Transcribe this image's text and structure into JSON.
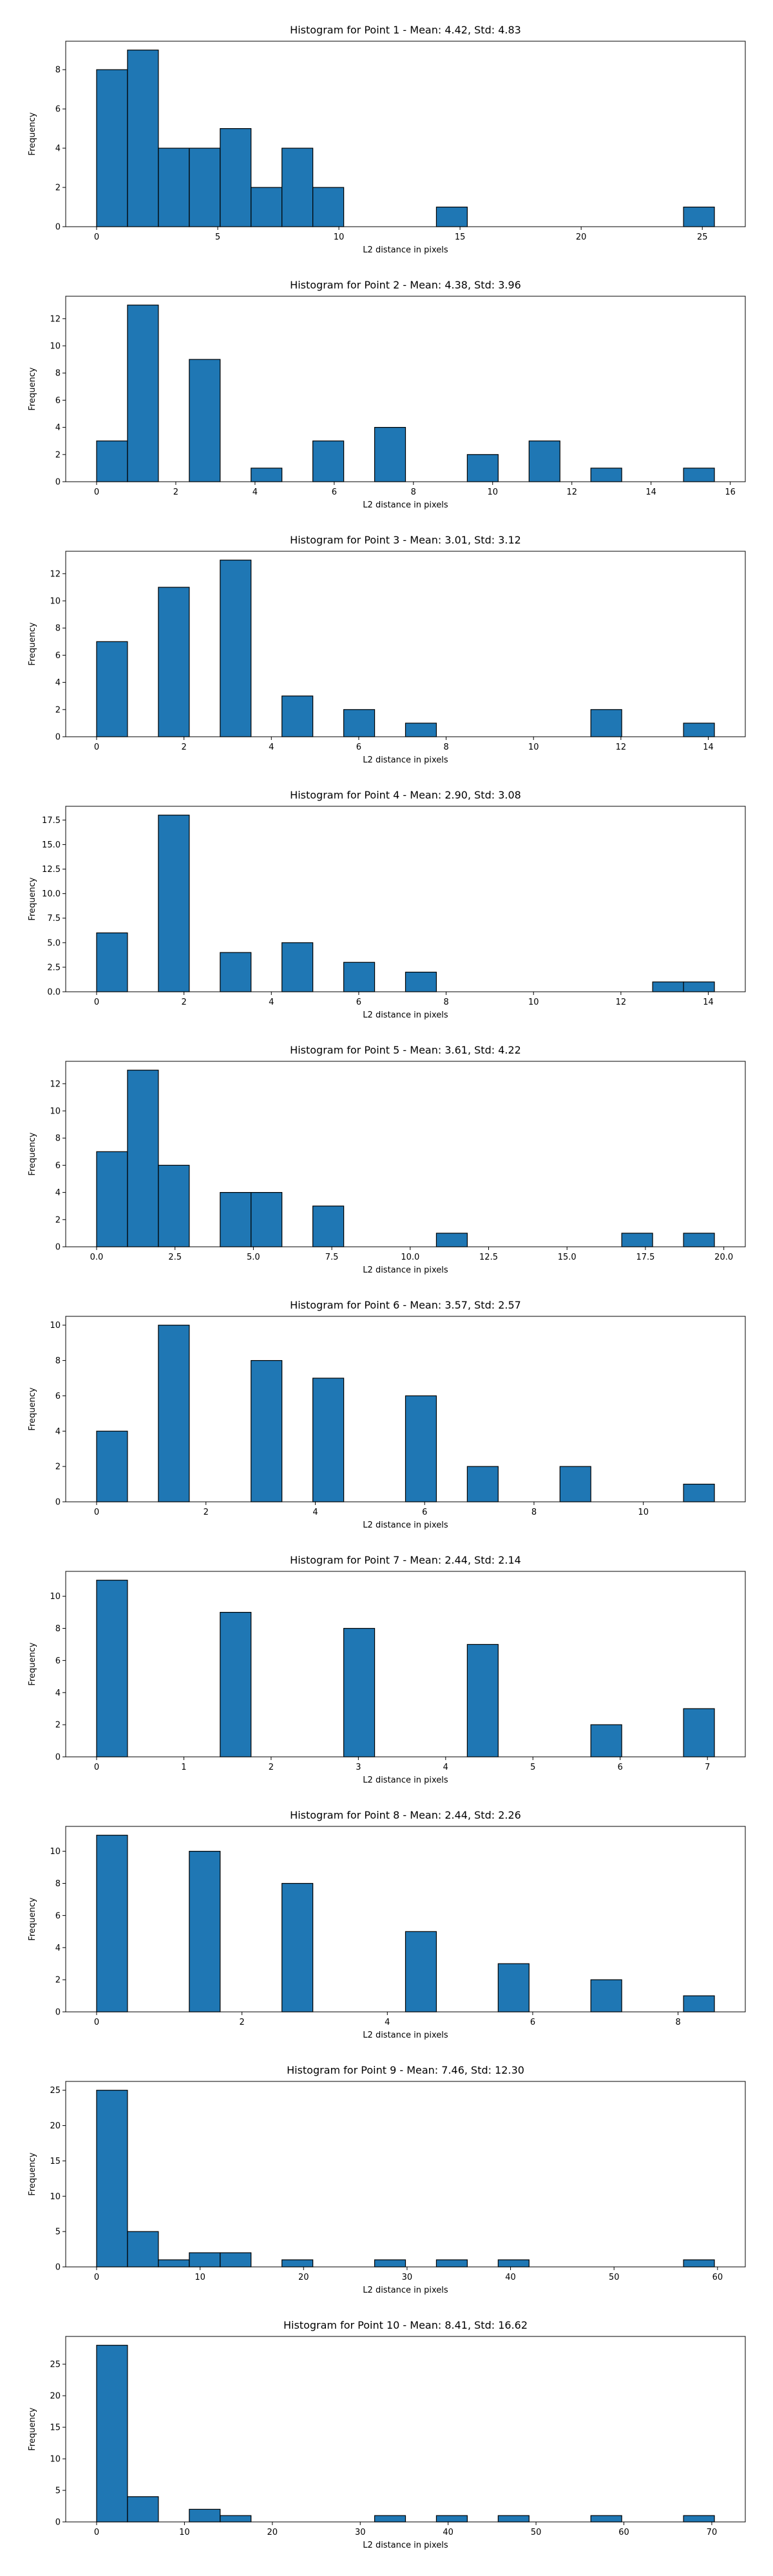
{
  "chart_data": [
    {
      "type": "histogram",
      "title": "Histogram for Point 1 - Mean: 4.42, Std: 4.83",
      "xlabel": "L2 distance in pixels",
      "ylabel": "Frequency",
      "color": "#1f77b4",
      "edge_color": "#000000",
      "bins": [
        0,
        1.275,
        2.55,
        3.825,
        5.1,
        6.375,
        7.65,
        8.925,
        10.2,
        11.475,
        12.75,
        14.025,
        15.3,
        16.575,
        17.85,
        19.125,
        20.4,
        21.675,
        22.95,
        24.225,
        25.5
      ],
      "values": [
        8,
        9,
        4,
        4,
        5,
        2,
        4,
        2,
        0,
        0,
        0,
        1,
        0,
        0,
        0,
        0,
        0,
        0,
        0,
        1
      ],
      "xlim": [
        -1.275,
        26.775
      ],
      "xticks": [
        0,
        5,
        10,
        15,
        20,
        25
      ],
      "ylim": [
        0,
        9.45
      ],
      "yticks": [
        0,
        2,
        4,
        6,
        8
      ]
    },
    {
      "type": "histogram",
      "title": "Histogram for Point 2 - Mean: 4.38, Std: 3.96",
      "xlabel": "L2 distance in pixels",
      "ylabel": "Frequency",
      "color": "#1f77b4",
      "edge_color": "#000000",
      "bins": [
        0,
        0.78,
        1.56,
        2.34,
        3.12,
        3.9,
        4.68,
        5.46,
        6.24,
        7.02,
        7.8,
        8.58,
        9.36,
        10.14,
        10.92,
        11.7,
        12.48,
        13.26,
        14.04,
        14.82,
        15.6
      ],
      "values": [
        3,
        13,
        0,
        9,
        0,
        1,
        0,
        3,
        0,
        4,
        0,
        0,
        2,
        0,
        3,
        0,
        1,
        0,
        0,
        1
      ],
      "xlim": [
        -0.78,
        16.38
      ],
      "xticks": [
        0,
        2,
        4,
        6,
        8,
        10,
        12,
        14,
        16
      ],
      "ylim": [
        0,
        13.65
      ],
      "yticks": [
        0,
        2,
        4,
        6,
        8,
        10,
        12
      ]
    },
    {
      "type": "histogram",
      "title": "Histogram for Point 3 - Mean: 3.01, Std: 3.12",
      "xlabel": "L2 distance in pixels",
      "ylabel": "Frequency",
      "color": "#1f77b4",
      "edge_color": "#000000",
      "bins": [
        0,
        0.707,
        1.414,
        2.121,
        2.828,
        3.535,
        4.242,
        4.949,
        5.656,
        6.363,
        7.07,
        7.777,
        8.484,
        9.191,
        9.898,
        10.605,
        11.312,
        12.019,
        12.726,
        13.433,
        14.14
      ],
      "values": [
        7,
        0,
        11,
        0,
        13,
        0,
        3,
        0,
        2,
        0,
        1,
        0,
        0,
        0,
        0,
        0,
        2,
        0,
        0,
        1
      ],
      "xlim": [
        -0.707,
        14.847
      ],
      "xticks": [
        0,
        2,
        4,
        6,
        8,
        10,
        12,
        14
      ],
      "ylim": [
        0,
        13.65
      ],
      "yticks": [
        0,
        2,
        4,
        6,
        8,
        10,
        12
      ]
    },
    {
      "type": "histogram",
      "title": "Histogram for Point 4 - Mean: 2.90, Std: 3.08",
      "xlabel": "L2 distance in pixels",
      "ylabel": "Frequency",
      "color": "#1f77b4",
      "edge_color": "#000000",
      "bins": [
        0,
        0.707,
        1.414,
        2.121,
        2.828,
        3.535,
        4.242,
        4.949,
        5.656,
        6.363,
        7.07,
        7.777,
        8.484,
        9.191,
        9.898,
        10.605,
        11.312,
        12.019,
        12.726,
        13.433,
        14.14
      ],
      "values": [
        6,
        0,
        18,
        0,
        4,
        0,
        5,
        0,
        3,
        0,
        2,
        0,
        0,
        0,
        0,
        0,
        0,
        0,
        1,
        1
      ],
      "xlim": [
        -0.707,
        14.847
      ],
      "xticks": [
        0,
        2,
        4,
        6,
        8,
        10,
        12,
        14
      ],
      "ylim": [
        0,
        18.9
      ],
      "yticks": [
        {
          "value": 0,
          "label": "0.0"
        },
        {
          "value": 2.5,
          "label": "2.5"
        },
        {
          "value": 5,
          "label": "5.0"
        },
        {
          "value": 7.5,
          "label": "7.5"
        },
        {
          "value": 10,
          "label": "10.0"
        },
        {
          "value": 12.5,
          "label": "12.5"
        },
        {
          "value": 15,
          "label": "15.0"
        },
        {
          "value": 17.5,
          "label": "17.5"
        }
      ]
    },
    {
      "type": "histogram",
      "title": "Histogram for Point 5 - Mean: 3.61, Std: 4.22",
      "xlabel": "L2 distance in pixels",
      "ylabel": "Frequency",
      "color": "#1f77b4",
      "edge_color": "#000000",
      "bins": [
        0,
        0.985,
        1.97,
        2.955,
        3.94,
        4.925,
        5.91,
        6.895,
        7.88,
        8.865,
        9.85,
        10.835,
        11.82,
        12.805,
        13.79,
        14.775,
        15.76,
        16.745,
        17.73,
        18.715,
        19.7
      ],
      "values": [
        7,
        13,
        6,
        0,
        4,
        4,
        0,
        3,
        0,
        0,
        0,
        1,
        0,
        0,
        0,
        0,
        0,
        1,
        0,
        1
      ],
      "xlim": [
        -0.985,
        20.685
      ],
      "xticks": [
        {
          "value": 0,
          "label": "0.0"
        },
        {
          "value": 2.5,
          "label": "2.5"
        },
        {
          "value": 5,
          "label": "5.0"
        },
        {
          "value": 7.5,
          "label": "7.5"
        },
        {
          "value": 10,
          "label": "10.0"
        },
        {
          "value": 12.5,
          "label": "12.5"
        },
        {
          "value": 15,
          "label": "15.0"
        },
        {
          "value": 17.5,
          "label": "17.5"
        },
        {
          "value": 20,
          "label": "20.0"
        }
      ],
      "ylim": [
        0,
        13.65
      ],
      "yticks": [
        0,
        2,
        4,
        6,
        8,
        10,
        12
      ]
    },
    {
      "type": "histogram",
      "title": "Histogram for Point 6 - Mean: 3.57, Std: 2.57",
      "xlabel": "L2 distance in pixels",
      "ylabel": "Frequency",
      "color": "#1f77b4",
      "edge_color": "#000000",
      "bins": [
        0,
        0.565,
        1.13,
        1.695,
        2.26,
        2.825,
        3.39,
        3.955,
        4.52,
        5.085,
        5.65,
        6.215,
        6.78,
        7.345,
        7.91,
        8.475,
        9.04,
        9.605,
        10.17,
        10.735,
        11.3
      ],
      "values": [
        4,
        0,
        10,
        0,
        0,
        8,
        0,
        7,
        0,
        0,
        6,
        0,
        2,
        0,
        0,
        2,
        0,
        0,
        0,
        1
      ],
      "xlim": [
        -0.565,
        11.865
      ],
      "xticks": [
        0,
        2,
        4,
        6,
        8,
        10
      ],
      "ylim": [
        0,
        10.5
      ],
      "yticks": [
        0,
        2,
        4,
        6,
        8,
        10
      ]
    },
    {
      "type": "histogram",
      "title": "Histogram for Point 7 - Mean: 2.44, Std: 2.14",
      "xlabel": "L2 distance in pixels",
      "ylabel": "Frequency",
      "color": "#1f77b4",
      "edge_color": "#000000",
      "bins": [
        0,
        0.354,
        0.708,
        1.062,
        1.416,
        1.77,
        2.124,
        2.478,
        2.832,
        3.186,
        3.54,
        3.894,
        4.248,
        4.602,
        4.956,
        5.31,
        5.664,
        6.018,
        6.372,
        6.726,
        7.08
      ],
      "values": [
        11,
        0,
        0,
        0,
        9,
        0,
        0,
        0,
        8,
        0,
        0,
        0,
        7,
        0,
        0,
        0,
        2,
        0,
        0,
        3
      ],
      "xlim": [
        -0.354,
        7.434
      ],
      "xticks": [
        0,
        1,
        2,
        3,
        4,
        5,
        6,
        7
      ],
      "ylim": [
        0,
        11.55
      ],
      "yticks": [
        0,
        2,
        4,
        6,
        8,
        10
      ]
    },
    {
      "type": "histogram",
      "title": "Histogram for Point 8 - Mean: 2.44, Std: 2.26",
      "xlabel": "L2 distance in pixels",
      "ylabel": "Frequency",
      "color": "#1f77b4",
      "edge_color": "#000000",
      "bins": [
        0,
        0.425,
        0.85,
        1.275,
        1.7,
        2.125,
        2.55,
        2.975,
        3.4,
        3.825,
        4.25,
        4.675,
        5.1,
        5.525,
        5.95,
        6.375,
        6.8,
        7.225,
        7.65,
        8.075,
        8.5
      ],
      "values": [
        11,
        0,
        0,
        10,
        0,
        0,
        8,
        0,
        0,
        0,
        5,
        0,
        0,
        3,
        0,
        0,
        2,
        0,
        0,
        1
      ],
      "xlim": [
        -0.425,
        8.925
      ],
      "xticks": [
        0,
        2,
        4,
        6,
        8
      ],
      "ylim": [
        0,
        11.55
      ],
      "yticks": [
        0,
        2,
        4,
        6,
        8,
        10
      ]
    },
    {
      "type": "histogram",
      "title": "Histogram for Point 9 - Mean: 7.46, Std: 12.30",
      "xlabel": "L2 distance in pixels",
      "ylabel": "Frequency",
      "color": "#1f77b4",
      "edge_color": "#000000",
      "bins": [
        0,
        2.985,
        5.97,
        8.955,
        11.94,
        14.925,
        17.91,
        20.895,
        23.88,
        26.865,
        29.85,
        32.835,
        35.82,
        38.805,
        41.79,
        44.775,
        47.76,
        50.745,
        53.73,
        56.715,
        59.7
      ],
      "values": [
        25,
        5,
        1,
        2,
        2,
        0,
        1,
        0,
        0,
        1,
        0,
        1,
        0,
        1,
        0,
        0,
        0,
        0,
        0,
        1
      ],
      "xlim": [
        -2.985,
        62.685
      ],
      "xticks": [
        0,
        10,
        20,
        30,
        40,
        50,
        60
      ],
      "ylim": [
        0,
        26.25
      ],
      "yticks": [
        0,
        5,
        10,
        15,
        20,
        25
      ]
    },
    {
      "type": "histogram",
      "title": "Histogram for Point 10 - Mean: 8.41, Std: 16.62",
      "xlabel": "L2 distance in pixels",
      "ylabel": "Frequency",
      "color": "#1f77b4",
      "edge_color": "#000000",
      "bins": [
        0,
        3.515,
        7.03,
        10.545,
        14.06,
        17.575,
        21.09,
        24.605,
        28.12,
        31.635,
        35.15,
        38.665,
        42.18,
        45.695,
        49.21,
        52.725,
        56.24,
        59.755,
        63.27,
        66.785,
        70.3
      ],
      "values": [
        28,
        4,
        0,
        2,
        1,
        0,
        0,
        0,
        0,
        1,
        0,
        1,
        0,
        1,
        0,
        0,
        1,
        0,
        0,
        1
      ],
      "xlim": [
        -3.515,
        73.815
      ],
      "xticks": [
        0,
        10,
        20,
        30,
        40,
        50,
        60,
        70
      ],
      "ylim": [
        0,
        29.4
      ],
      "yticks": [
        0,
        5,
        10,
        15,
        20,
        25
      ]
    }
  ]
}
